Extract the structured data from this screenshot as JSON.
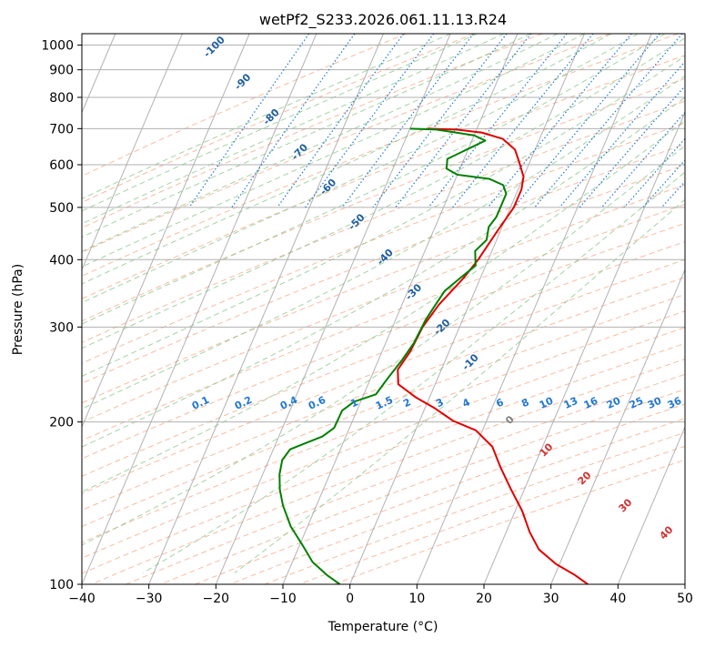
{
  "chart_data": {
    "type": "line",
    "chart_kind": "skew-T log-P",
    "title": "wetPf2_S233.2026.061.11.13.R24",
    "xlabel": "Temperature (°C)",
    "ylabel": "Pressure (hPa)",
    "xlim": [
      -40,
      50
    ],
    "ylim": [
      1050,
      100
    ],
    "y_scale": "log",
    "grid": true,
    "x_ticks": [
      -40,
      -30,
      -20,
      -10,
      0,
      10,
      20,
      30,
      40,
      50
    ],
    "x_tick_labels": [
      "−40",
      "−30",
      "−20",
      "−10",
      "0",
      "10",
      "20",
      "30",
      "40",
      "50"
    ],
    "y_ticks": [
      100,
      200,
      300,
      400,
      500,
      600,
      700,
      800,
      900,
      1000
    ],
    "y_tick_labels": [
      "100",
      "200",
      "300",
      "400",
      "500",
      "600",
      "700",
      "800",
      "900",
      "1000"
    ],
    "colors": {
      "temperature": "#e00000",
      "dewpoint": "#008000",
      "dry_adiabat": "#f4a582",
      "moist_adiabat": "#8cc88c",
      "mixing_ratio": "#1f77d4",
      "isotherm": "#999999",
      "grid": "#b0b0b0",
      "dry_label": "#1f5f9f",
      "moist_label": "#808080",
      "moist_label_warm": "#d03030"
    },
    "series": [
      {
        "key": "temperature",
        "points": [
          [
            -17.5,
            700
          ],
          [
            -13,
            697
          ],
          [
            -9,
            688
          ],
          [
            -5.5,
            670
          ],
          [
            -3,
            640
          ],
          [
            -1.5,
            605
          ],
          [
            0,
            570
          ],
          [
            0.5,
            540
          ],
          [
            0.5,
            500
          ],
          [
            -0.5,
            450
          ],
          [
            -1.5,
            400
          ],
          [
            -2.5,
            370
          ],
          [
            -4.5,
            330
          ],
          [
            -5.5,
            300
          ],
          [
            -5.8,
            270
          ],
          [
            -6.5,
            250
          ],
          [
            -5.5,
            235
          ],
          [
            -2,
            222
          ],
          [
            1.5,
            212
          ],
          [
            5,
            201
          ],
          [
            9,
            193
          ],
          [
            12.5,
            180
          ],
          [
            15,
            165
          ],
          [
            18,
            150
          ],
          [
            21,
            137
          ],
          [
            23.5,
            125
          ],
          [
            26,
            116
          ],
          [
            29.5,
            109
          ],
          [
            33,
            104
          ],
          [
            35.5,
            100
          ]
        ]
      },
      {
        "key": "dewpoint",
        "points": [
          [
            -20,
            700
          ],
          [
            -16,
            697
          ],
          [
            -13.5,
            690
          ],
          [
            -10,
            680
          ],
          [
            -8,
            665
          ],
          [
            -9.5,
            648
          ],
          [
            -12.5,
            615
          ],
          [
            -12,
            590
          ],
          [
            -10,
            575
          ],
          [
            -5,
            565
          ],
          [
            -2.5,
            550
          ],
          [
            -1.5,
            530
          ],
          [
            -1.5,
            510
          ],
          [
            -1.5,
            480
          ],
          [
            -2,
            460
          ],
          [
            -1.5,
            435
          ],
          [
            -2.5,
            415
          ],
          [
            -1.5,
            390
          ],
          [
            -3,
            370
          ],
          [
            -4.5,
            350
          ],
          [
            -5,
            330
          ],
          [
            -5.5,
            310
          ],
          [
            -5.8,
            280
          ],
          [
            -6.5,
            260
          ],
          [
            -7.5,
            240
          ],
          [
            -8.2,
            225
          ],
          [
            -11,
            218
          ],
          [
            -12.2,
            210
          ],
          [
            -12.3,
            195
          ],
          [
            -13.5,
            188
          ],
          [
            -15.5,
            183
          ],
          [
            -17.5,
            178
          ],
          [
            -18,
            170
          ],
          [
            -17.5,
            160
          ],
          [
            -16.5,
            150
          ],
          [
            -15,
            140
          ],
          [
            -12.5,
            128
          ],
          [
            -9.5,
            118
          ],
          [
            -7,
            110
          ],
          [
            -4,
            104
          ],
          [
            -1.5,
            100
          ]
        ]
      }
    ],
    "dry_adiabat_labels": [
      "-100",
      "-90",
      "-80",
      "-70",
      "-60",
      "-50",
      "-40",
      "-30",
      "-20",
      "-10"
    ],
    "moist_adiabat_labels": [
      "0",
      "10",
      "20",
      "30",
      "40"
    ],
    "mixing_ratio_labels": [
      "0.1",
      "0.2",
      "0.4",
      "0.6",
      "1",
      "1.5",
      "2",
      "3",
      "4",
      "6",
      "8",
      "10",
      "13",
      "16",
      "20",
      "25",
      "30",
      "36"
    ]
  }
}
